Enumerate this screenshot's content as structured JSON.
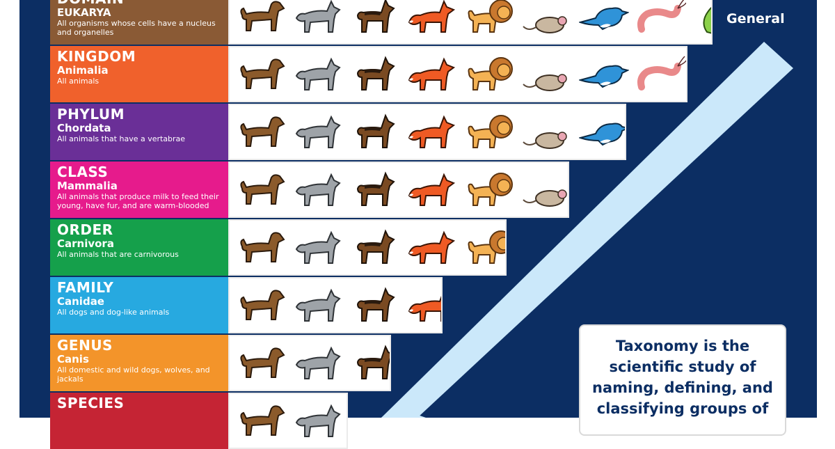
{
  "corner_label": "General",
  "callout_text": "Taxonomy is the scientific study of naming, defining, and classifying groups of",
  "colors": {
    "background": "#0c2e63",
    "arrow": "#cbe8fa",
    "domain": "#8a5a35",
    "kingdom": "#f0612c",
    "phylum": "#6a2f97",
    "class": "#e61b8c",
    "order": "#15a04b",
    "family": "#27a9e0",
    "genus": "#f3942a",
    "species": "#c52434"
  },
  "levels": [
    {
      "rank": "DOMAIN",
      "taxon": "EUKARYA",
      "desc": "All organisms whose cells have a nucleus and organelles",
      "animals": [
        "dog",
        "wolf",
        "jackal",
        "fox",
        "lion",
        "mouse",
        "bird",
        "shrimp",
        "bacterium"
      ]
    },
    {
      "rank": "KINGDOM",
      "taxon": "Animalia",
      "desc": "All animals",
      "animals": [
        "dog",
        "wolf",
        "jackal",
        "fox",
        "lion",
        "mouse",
        "bird",
        "shrimp"
      ]
    },
    {
      "rank": "PHYLUM",
      "taxon": "Chordata",
      "desc": "All animals that have a vertabrae",
      "animals": [
        "dog",
        "wolf",
        "jackal",
        "fox",
        "lion",
        "mouse",
        "bird"
      ]
    },
    {
      "rank": "CLASS",
      "taxon": "Mammalia",
      "desc": "All animals that produce milk to feed their young, have fur, and are warm-blooded",
      "animals": [
        "dog",
        "wolf",
        "jackal",
        "fox",
        "lion",
        "mouse"
      ]
    },
    {
      "rank": "ORDER",
      "taxon": "Carnivora",
      "desc": "All animals that are carnivorous",
      "animals": [
        "dog",
        "wolf",
        "jackal",
        "fox",
        "lion"
      ]
    },
    {
      "rank": "FAMILY",
      "taxon": "Canidae",
      "desc": "All dogs and dog-like animals",
      "animals": [
        "dog",
        "wolf",
        "jackal",
        "fox"
      ]
    },
    {
      "rank": "GENUS",
      "taxon": "Canis",
      "desc": "All domestic and wild dogs, wolves, and jackals",
      "animals": [
        "dog",
        "wolf",
        "jackal"
      ]
    },
    {
      "rank": "SPECIES",
      "taxon": "",
      "desc": "",
      "animals": [
        "dog",
        "wolf"
      ]
    }
  ]
}
